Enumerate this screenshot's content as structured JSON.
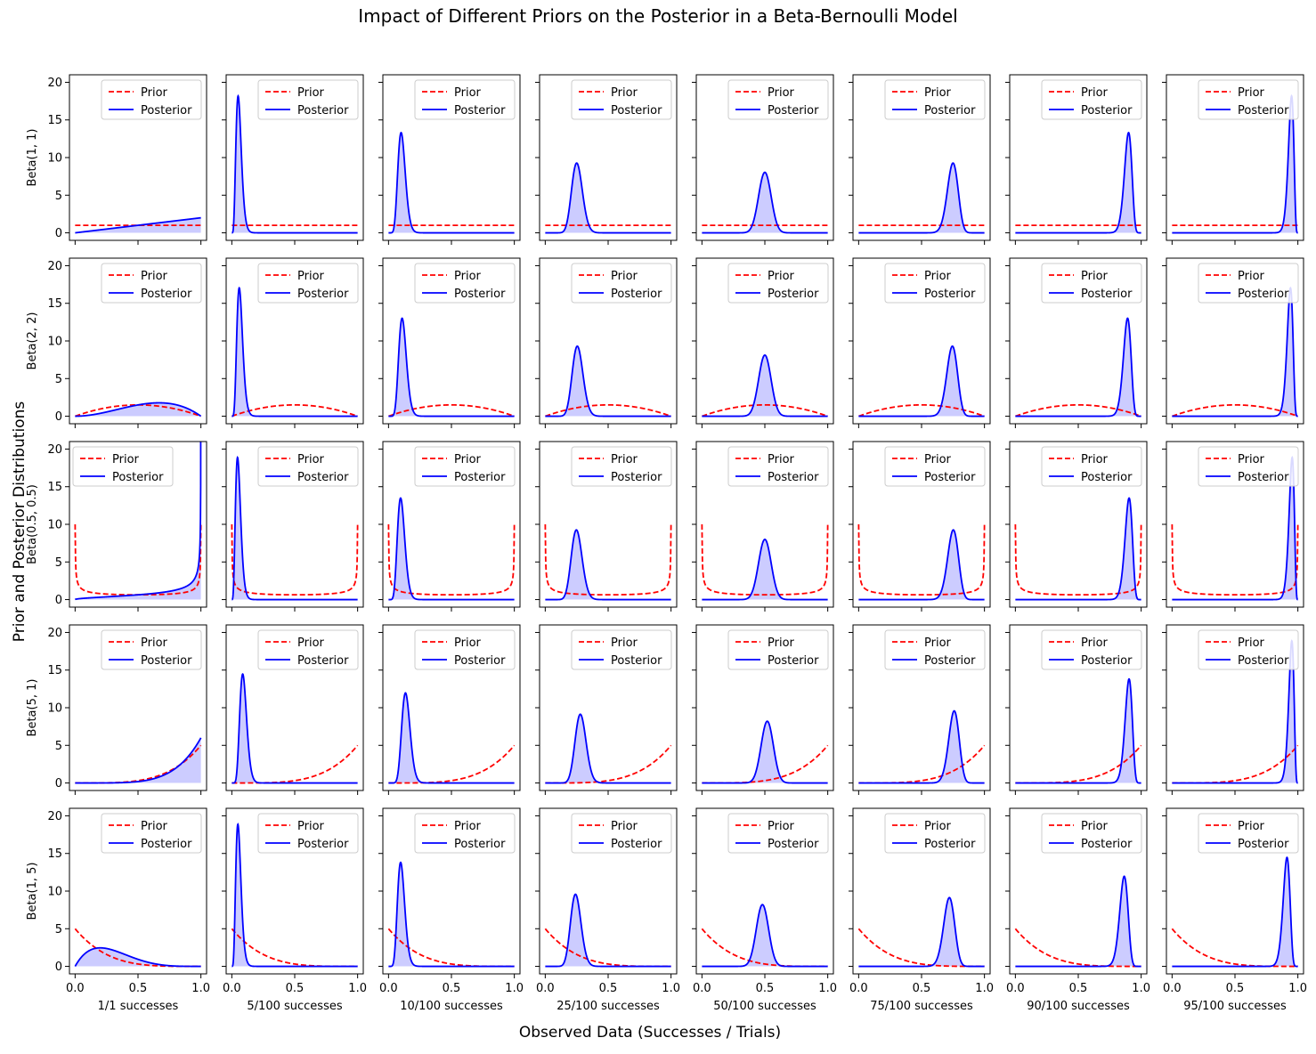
{
  "figure": {
    "title": "Impact of Different Priors on the Posterior in a Beta-Bernoulli Model",
    "xlabel": "Observed Data (Successes / Trials)",
    "ylabel": "Prior and Posterior Distributions"
  },
  "chart_data": {
    "type": "line",
    "layout": "grid 5 rows x 8 columns",
    "x_range": [
      0,
      1
    ],
    "ylim": [
      -1,
      21
    ],
    "x_ticks": [
      "0.0",
      "0.5",
      "1.0"
    ],
    "y_ticks": [
      "0",
      "5",
      "10",
      "15",
      "20"
    ],
    "legend": {
      "entries": [
        "Prior",
        "Posterior"
      ],
      "location": "upper right (upper left in panel Beta(0.5, 0.5), 1/1 successes)"
    },
    "prior_line": {
      "style": "dashed",
      "color": "#ff0000"
    },
    "posterior_line": {
      "style": "solid",
      "color": "#0000ff",
      "fill": "#ccccff"
    },
    "row_labels": [
      "Beta(1, 1)",
      "Beta(2, 2)",
      "Beta(0.5, 0.5)",
      "Beta(5, 1)",
      "Beta(1, 5)"
    ],
    "column_labels": [
      "1/1 successes",
      "5/100 successes",
      "10/100 successes",
      "25/100 successes",
      "50/100 successes",
      "75/100 successes",
      "90/100 successes",
      "95/100 successes"
    ],
    "priors": [
      {
        "label": "Beta(1, 1)",
        "a": 1,
        "b": 1
      },
      {
        "label": "Beta(2, 2)",
        "a": 2,
        "b": 2
      },
      {
        "label": "Beta(0.5, 0.5)",
        "a": 0.5,
        "b": 0.5
      },
      {
        "label": "Beta(5, 1)",
        "a": 5,
        "b": 1
      },
      {
        "label": "Beta(1, 5)",
        "a": 1,
        "b": 5
      }
    ],
    "observations": [
      {
        "label": "1/1 successes",
        "successes": 1,
        "trials": 1
      },
      {
        "label": "5/100 successes",
        "successes": 5,
        "trials": 100
      },
      {
        "label": "10/100 successes",
        "successes": 10,
        "trials": 100
      },
      {
        "label": "25/100 successes",
        "successes": 25,
        "trials": 100
      },
      {
        "label": "50/100 successes",
        "successes": 50,
        "trials": 100
      },
      {
        "label": "75/100 successes",
        "successes": 75,
        "trials": 100
      },
      {
        "label": "90/100 successes",
        "successes": 90,
        "trials": 100
      },
      {
        "label": "95/100 successes",
        "successes": 95,
        "trials": 100
      }
    ]
  }
}
